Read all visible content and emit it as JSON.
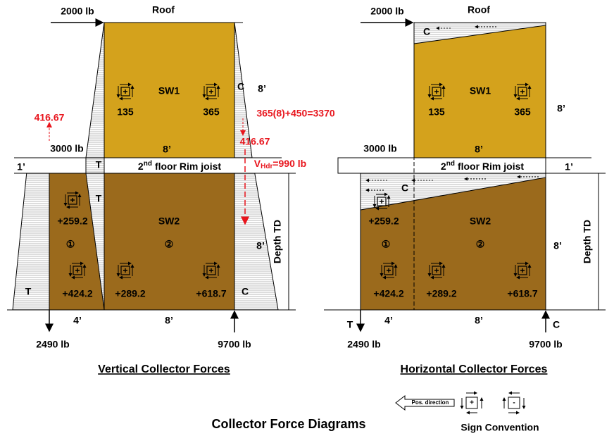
{
  "title": "Collector Force Diagrams",
  "vertical": {
    "title": "Vertical Collector Forces",
    "roof": "Roof",
    "force_roof": "2000 lb",
    "force_floor": "3000 lb",
    "rim": {
      "num": "2",
      "sup": "nd",
      "rest": "floor Rim joist"
    },
    "walls": [
      "SW1",
      "SW2"
    ],
    "panels": [
      "①",
      "②"
    ],
    "shears": [
      "135",
      "365",
      "+259.2",
      "+424.2",
      "+289.2",
      "+618.7"
    ],
    "dims": [
      "8’",
      "8’",
      "1’",
      "8’",
      "4’",
      "8’"
    ],
    "depth": "Depth TD",
    "reactions": [
      "2490 lb",
      "9700 lb"
    ],
    "tc": [
      "T",
      "C",
      "T",
      "T",
      "C"
    ],
    "annotations": [
      "416.67",
      "365(8)+450=3370",
      "416.67"
    ],
    "vhdr": {
      "v": "V",
      "sub": "Hdr",
      "rest": "=990 lb"
    }
  },
  "horizontal": {
    "title": "Horizontal Collector Forces",
    "roof": "Roof",
    "force_roof": "2000 lb",
    "force_floor": "3000 lb",
    "rim": {
      "num": "2",
      "sup": "nd",
      "rest": "floor Rim joist"
    },
    "walls": [
      "SW1",
      "SW2"
    ],
    "panels": [
      "①",
      "②"
    ],
    "shears": [
      "135",
      "365",
      "+259.2",
      "+424.2",
      "+289.2",
      "+618.7"
    ],
    "dims": [
      "8’",
      "8’",
      "1’",
      "8’",
      "4’",
      "8’"
    ],
    "depth": "Depth TD",
    "reactions": [
      "2490 lb",
      "9700 lb"
    ],
    "tc": [
      "C",
      "C",
      "T",
      "C"
    ]
  },
  "sign": {
    "direction": "Pos. direction",
    "plus": "+",
    "minus": "-",
    "title": "Sign Convention"
  }
}
